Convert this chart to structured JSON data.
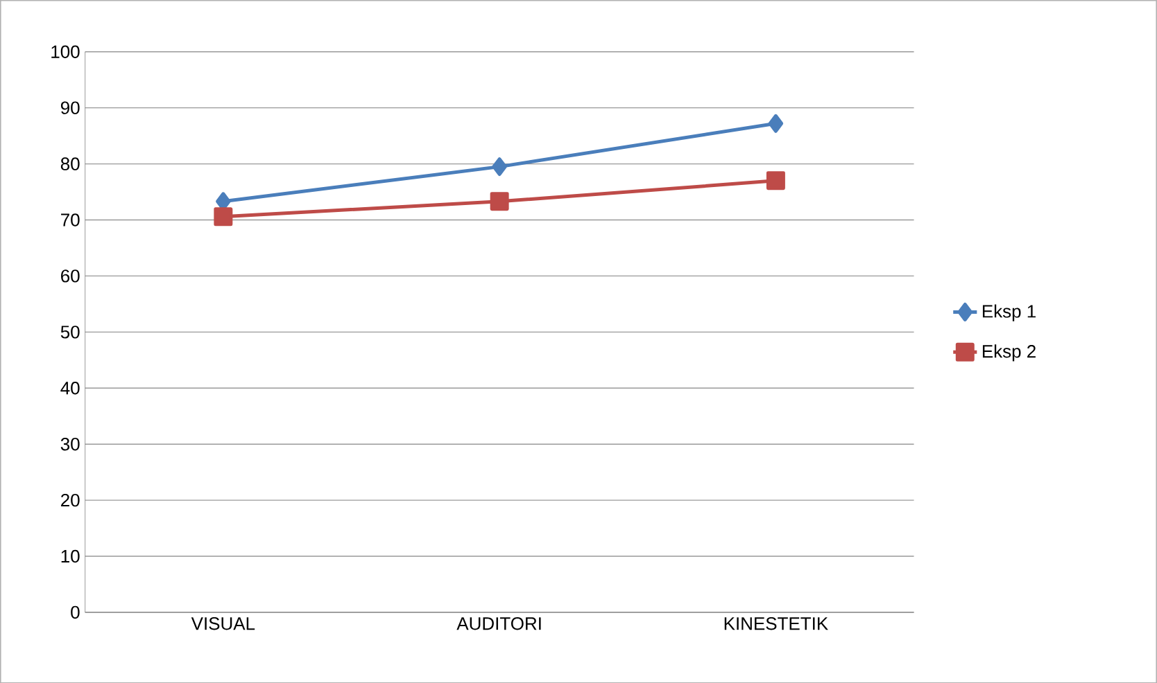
{
  "chart_data": {
    "type": "line",
    "categories": [
      "VISUAL",
      "AUDITORI",
      "KINESTETIK"
    ],
    "series": [
      {
        "name": "Eksp 1",
        "color": "#4a7ebb",
        "values": [
          73.3,
          79.5,
          87.2
        ],
        "marker": "diamond"
      },
      {
        "name": "Eksp 2",
        "color": "#be4b48",
        "values": [
          70.6,
          73.3,
          77.0
        ],
        "marker": "square"
      }
    ],
    "ylim": [
      0,
      100
    ],
    "yticks": [
      0,
      10,
      20,
      30,
      40,
      50,
      60,
      70,
      80,
      90,
      100
    ],
    "grid": "y",
    "legend": "right"
  }
}
